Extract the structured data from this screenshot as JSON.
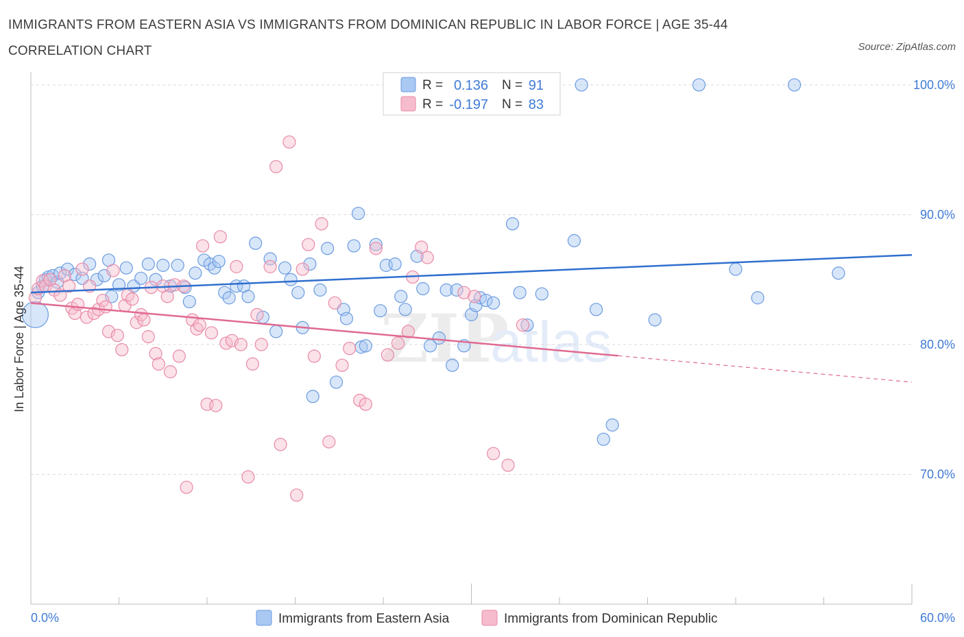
{
  "title": "IMMIGRANTS FROM EASTERN ASIA VS IMMIGRANTS FROM DOMINICAN REPUBLIC IN LABOR FORCE | AGE 35-44 CORRELATION CHART",
  "source": "Source: ZipAtlas.com",
  "watermark": {
    "zip": "ZIP",
    "atlas": "atlas"
  },
  "colors": {
    "blue_fill": "#a9c8f2",
    "blue_stroke": "#6b9be0",
    "blue_line": "#2f6fce",
    "pink_fill": "#f6bccd",
    "pink_stroke": "#e88aa6",
    "pink_line": "#e06a92",
    "grid": "#d9d9d9",
    "axis_text": "#3f7ad6"
  },
  "chart_data": {
    "type": "scatter",
    "title": "IMMIGRANTS FROM EASTERN ASIA VS IMMIGRANTS FROM DOMINICAN REPUBLIC IN LABOR FORCE | AGE 35-44 CORRELATION CHART",
    "xlabel": "",
    "ylabel": "In Labor Force | Age 35-44",
    "xlim": [
      0,
      60
    ],
    "ylim": [
      60,
      101
    ],
    "x_tick_labels": {
      "left": "0.0%",
      "right": "60.0%"
    },
    "y_ticks": [
      {
        "value": 70,
        "label": "70.0%"
      },
      {
        "value": 80,
        "label": "80.0%"
      },
      {
        "value": 90,
        "label": "90.0%"
      },
      {
        "value": 100,
        "label": "100.0%"
      }
    ],
    "grid": true,
    "legend_position": "top-center",
    "legend": [
      {
        "r_label": "R =",
        "r_value": "0.136",
        "n_label": "N =",
        "n_value": "91"
      },
      {
        "r_label": "R =",
        "r_value": "-0.197",
        "n_label": "N =",
        "n_value": "83"
      }
    ],
    "series": [
      {
        "name": "Immigrants from Eastern Asia",
        "color": "blue",
        "trend": {
          "x": [
            0,
            60
          ],
          "y": [
            84.0,
            86.9
          ],
          "dashed_from": null
        },
        "points": [
          [
            0.3,
            82.3
          ],
          [
            0.5,
            84.0
          ],
          [
            0.8,
            84.5
          ],
          [
            1.0,
            85.0
          ],
          [
            1.2,
            85.2
          ],
          [
            1.5,
            85.3
          ],
          [
            1.8,
            84.8
          ],
          [
            2.0,
            85.5
          ],
          [
            2.5,
            85.8
          ],
          [
            3.0,
            85.4
          ],
          [
            3.5,
            85.1
          ],
          [
            4.0,
            86.2
          ],
          [
            4.5,
            85.0
          ],
          [
            5.0,
            85.3
          ],
          [
            5.3,
            86.5
          ],
          [
            5.5,
            83.7
          ],
          [
            6.0,
            84.6
          ],
          [
            6.5,
            85.9
          ],
          [
            7.0,
            84.5
          ],
          [
            7.5,
            85.1
          ],
          [
            8.0,
            86.2
          ],
          [
            8.5,
            85.0
          ],
          [
            9.0,
            86.1
          ],
          [
            9.5,
            84.5
          ],
          [
            10.0,
            86.1
          ],
          [
            10.5,
            84.4
          ],
          [
            10.8,
            83.3
          ],
          [
            11.2,
            85.5
          ],
          [
            11.8,
            86.5
          ],
          [
            12.2,
            86.2
          ],
          [
            12.5,
            85.9
          ],
          [
            12.8,
            86.4
          ],
          [
            13.2,
            84.0
          ],
          [
            13.5,
            83.6
          ],
          [
            14.0,
            84.5
          ],
          [
            14.5,
            84.5
          ],
          [
            14.8,
            83.7
          ],
          [
            15.3,
            87.8
          ],
          [
            15.8,
            82.1
          ],
          [
            16.3,
            86.6
          ],
          [
            16.7,
            81.0
          ],
          [
            17.3,
            85.9
          ],
          [
            17.7,
            85.0
          ],
          [
            18.2,
            84.0
          ],
          [
            18.5,
            81.3
          ],
          [
            19.0,
            86.2
          ],
          [
            19.2,
            76.0
          ],
          [
            19.7,
            84.2
          ],
          [
            20.2,
            87.4
          ],
          [
            20.8,
            77.1
          ],
          [
            21.3,
            82.7
          ],
          [
            21.5,
            82.0
          ],
          [
            22.0,
            87.6
          ],
          [
            22.3,
            90.1
          ],
          [
            22.5,
            79.8
          ],
          [
            22.8,
            79.9
          ],
          [
            23.5,
            87.7
          ],
          [
            23.8,
            82.6
          ],
          [
            24.2,
            86.1
          ],
          [
            24.8,
            86.2
          ],
          [
            25.2,
            83.7
          ],
          [
            25.5,
            82.7
          ],
          [
            26.3,
            86.8
          ],
          [
            26.7,
            84.3
          ],
          [
            27.2,
            79.9
          ],
          [
            27.8,
            80.5
          ],
          [
            28.3,
            84.2
          ],
          [
            28.7,
            78.4
          ],
          [
            29.0,
            84.2
          ],
          [
            29.5,
            79.9
          ],
          [
            30.0,
            82.3
          ],
          [
            30.3,
            83.0
          ],
          [
            30.6,
            83.6
          ],
          [
            31.0,
            83.4
          ],
          [
            31.5,
            83.2
          ],
          [
            32.2,
            100.0
          ],
          [
            32.8,
            89.3
          ],
          [
            33.3,
            84.0
          ],
          [
            33.8,
            81.5
          ],
          [
            34.8,
            83.9
          ],
          [
            37.0,
            88.0
          ],
          [
            37.5,
            100.0
          ],
          [
            38.5,
            82.7
          ],
          [
            39.0,
            72.7
          ],
          [
            39.6,
            73.8
          ],
          [
            42.5,
            81.9
          ],
          [
            45.5,
            100.0
          ],
          [
            48.0,
            85.8
          ],
          [
            49.5,
            83.6
          ],
          [
            52.0,
            100.0
          ],
          [
            55.0,
            85.5
          ]
        ]
      },
      {
        "name": "Immigrants from Dominican Republic",
        "color": "pink",
        "trend": {
          "x": [
            0,
            60
          ],
          "y": [
            83.2,
            77.1
          ],
          "dashed_from": 40.0
        },
        "points": [
          [
            0.3,
            83.6
          ],
          [
            0.5,
            84.3
          ],
          [
            0.8,
            84.9
          ],
          [
            1.0,
            84.5
          ],
          [
            1.3,
            85.0
          ],
          [
            1.6,
            84.2
          ],
          [
            2.0,
            83.8
          ],
          [
            2.3,
            85.3
          ],
          [
            2.6,
            84.5
          ],
          [
            2.8,
            82.8
          ],
          [
            3.0,
            82.4
          ],
          [
            3.2,
            83.1
          ],
          [
            3.5,
            85.8
          ],
          [
            3.8,
            82.1
          ],
          [
            4.0,
            84.5
          ],
          [
            4.3,
            82.4
          ],
          [
            4.6,
            82.7
          ],
          [
            4.9,
            83.4
          ],
          [
            5.1,
            82.9
          ],
          [
            5.3,
            81.0
          ],
          [
            5.6,
            85.7
          ],
          [
            5.9,
            80.7
          ],
          [
            6.2,
            79.6
          ],
          [
            6.4,
            83.0
          ],
          [
            6.6,
            83.8
          ],
          [
            6.9,
            83.5
          ],
          [
            7.2,
            81.7
          ],
          [
            7.5,
            82.3
          ],
          [
            7.7,
            81.9
          ],
          [
            8.0,
            80.6
          ],
          [
            8.2,
            84.4
          ],
          [
            8.5,
            79.3
          ],
          [
            8.7,
            78.5
          ],
          [
            9.0,
            84.5
          ],
          [
            9.3,
            83.7
          ],
          [
            9.5,
            77.9
          ],
          [
            9.8,
            84.6
          ],
          [
            10.1,
            79.1
          ],
          [
            10.4,
            84.5
          ],
          [
            10.6,
            69.0
          ],
          [
            11.0,
            81.9
          ],
          [
            11.3,
            81.2
          ],
          [
            11.5,
            81.5
          ],
          [
            11.7,
            87.6
          ],
          [
            12.0,
            75.4
          ],
          [
            12.3,
            80.9
          ],
          [
            12.6,
            75.3
          ],
          [
            12.9,
            88.3
          ],
          [
            13.3,
            80.1
          ],
          [
            13.7,
            80.3
          ],
          [
            14.0,
            86.0
          ],
          [
            14.3,
            80.0
          ],
          [
            14.8,
            69.8
          ],
          [
            15.1,
            78.5
          ],
          [
            15.4,
            82.3
          ],
          [
            15.7,
            80.0
          ],
          [
            16.3,
            86.0
          ],
          [
            16.7,
            93.7
          ],
          [
            17.0,
            72.3
          ],
          [
            17.6,
            95.6
          ],
          [
            18.1,
            68.4
          ],
          [
            18.5,
            85.8
          ],
          [
            18.9,
            87.7
          ],
          [
            19.3,
            79.1
          ],
          [
            19.8,
            89.3
          ],
          [
            20.3,
            72.5
          ],
          [
            20.7,
            83.2
          ],
          [
            21.2,
            78.4
          ],
          [
            21.7,
            79.7
          ],
          [
            22.4,
            75.7
          ],
          [
            22.8,
            75.4
          ],
          [
            23.5,
            87.4
          ],
          [
            24.3,
            79.2
          ],
          [
            25.0,
            80.1
          ],
          [
            25.7,
            81.0
          ],
          [
            26.0,
            85.2
          ],
          [
            26.6,
            87.5
          ],
          [
            27.0,
            86.7
          ],
          [
            29.5,
            84.0
          ],
          [
            30.2,
            83.7
          ],
          [
            31.5,
            71.6
          ],
          [
            32.5,
            70.7
          ],
          [
            33.5,
            81.5
          ]
        ]
      }
    ]
  },
  "bottom_legend": [
    {
      "label": "Immigrants from Eastern Asia",
      "color": "blue"
    },
    {
      "label": "Immigrants from Dominican Republic",
      "color": "pink"
    }
  ]
}
